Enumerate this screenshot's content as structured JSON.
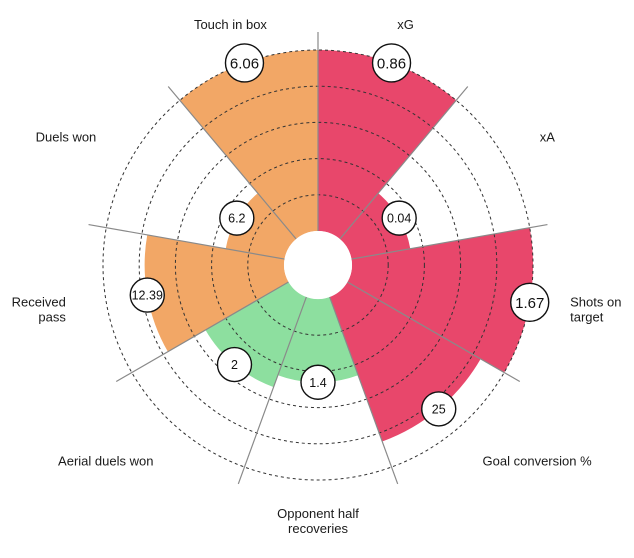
{
  "chart_data": {
    "type": "radial-bar",
    "title": "",
    "axis_max": 10,
    "grid_rings": 5,
    "grid_lines": "dashed",
    "categories": [
      "xG",
      "xA",
      "Shots on target",
      "Goal conversion %",
      "Opponent half recoveries",
      "Aerial duels won",
      "Received pass",
      "Duels won",
      "Touch in box"
    ],
    "label_lines": [
      [
        "xG"
      ],
      [
        "xA"
      ],
      [
        "Shots on",
        "target"
      ],
      [
        "Goal conversion %"
      ],
      [
        "Opponent half",
        "recoveries"
      ],
      [
        "Aerial duels won"
      ],
      [
        "Received",
        "pass"
      ],
      [
        "Duels won"
      ],
      [
        "Touch in box"
      ]
    ],
    "values": [
      0.86,
      0.04,
      1.67,
      25,
      1.4,
      2,
      12.39,
      6.2,
      6.06
    ],
    "bar_levels": [
      10,
      3.3,
      10,
      8.5,
      4.6,
      5.3,
      7.7,
      3.3,
      10
    ],
    "groups": [
      "attacking",
      "attacking",
      "attacking",
      "attacking",
      "possession",
      "possession",
      "passing",
      "passing",
      "passing"
    ],
    "colors": {
      "attacking": "#e8476b",
      "possession": "#8ddf9f",
      "passing": "#f2a766",
      "grid": "#333333",
      "divider": "#8a8a8a"
    }
  }
}
